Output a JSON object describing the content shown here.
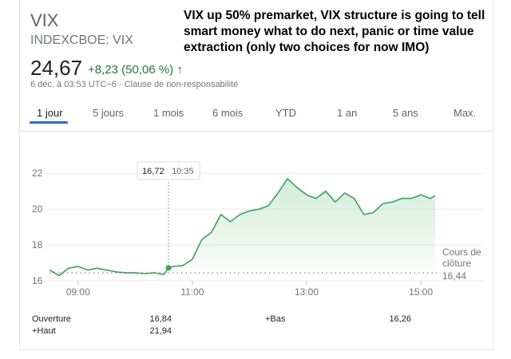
{
  "quote": {
    "ticker": "VIX",
    "exchange": "INDEXCBOE: VIX",
    "price": "24,67",
    "change": "+8,23 (50,06 %)",
    "arrow": "↑",
    "meta": "6 déc. à 03:53 UTC−6 · Clause de non-responsabilité"
  },
  "headline": "VIX up 50% premarket, VIX structure is going to tell smart money what to do next, panic or time value extraction (only two choices for now IMO)",
  "tabs": [
    {
      "label": "1 jour",
      "active": true
    },
    {
      "label": "5 jours",
      "active": false
    },
    {
      "label": "1 mois",
      "active": false
    },
    {
      "label": "6 mois",
      "active": false
    },
    {
      "label": "YTD",
      "active": false
    },
    {
      "label": "1 an",
      "active": false
    },
    {
      "label": "5 ans",
      "active": false
    },
    {
      "label": "Max.",
      "active": false
    }
  ],
  "colors": {
    "positive": "#188038",
    "line": "#34a853",
    "tab_accent": "#1a73e8"
  },
  "chart_data": {
    "type": "line",
    "y_ticks": [
      "22",
      "20",
      "18",
      "16"
    ],
    "x_ticks": [
      "09:00",
      "11:00",
      "13:00",
      "15:00"
    ],
    "ylim": [
      16,
      22.5
    ],
    "xlim": [
      "08:30",
      "15:15"
    ],
    "tooltip": {
      "value": "16,72",
      "time": "10:35"
    },
    "previous_close": {
      "label_line1": "Cours de",
      "label_line2": "clôture",
      "value": "16,44"
    },
    "series": [
      {
        "x": [
          "08:30",
          "08:40",
          "08:50",
          "09:00",
          "09:10",
          "09:20",
          "09:30",
          "09:40",
          "09:50",
          "10:00",
          "10:10",
          "10:20",
          "10:30",
          "10:35",
          "10:40",
          "10:50",
          "11:00",
          "11:10",
          "11:20",
          "11:30",
          "11:40",
          "11:50",
          "12:00",
          "12:10",
          "12:20",
          "12:30",
          "12:40",
          "12:50",
          "13:00",
          "13:10",
          "13:20",
          "13:30",
          "13:40",
          "13:50",
          "14:00",
          "14:10",
          "14:20",
          "14:30",
          "14:40",
          "14:50",
          "15:00",
          "15:10",
          "15:15"
        ],
        "y": [
          16.6,
          16.3,
          16.7,
          16.8,
          16.6,
          16.7,
          16.6,
          16.5,
          16.45,
          16.45,
          16.4,
          16.45,
          16.35,
          16.72,
          16.8,
          16.85,
          17.2,
          18.3,
          18.7,
          19.7,
          19.3,
          19.7,
          19.9,
          20.0,
          20.2,
          20.9,
          21.7,
          21.2,
          20.8,
          20.6,
          21.0,
          20.4,
          20.9,
          20.6,
          19.7,
          19.8,
          20.3,
          20.4,
          20.6,
          20.6,
          20.8,
          20.6,
          20.75
        ]
      }
    ]
  },
  "stats": [
    {
      "label": "Ouverture",
      "value": "16,84"
    },
    {
      "label": "+Haut",
      "value": "21,94"
    },
    {
      "label": "+Bas",
      "value": "16,26"
    }
  ]
}
